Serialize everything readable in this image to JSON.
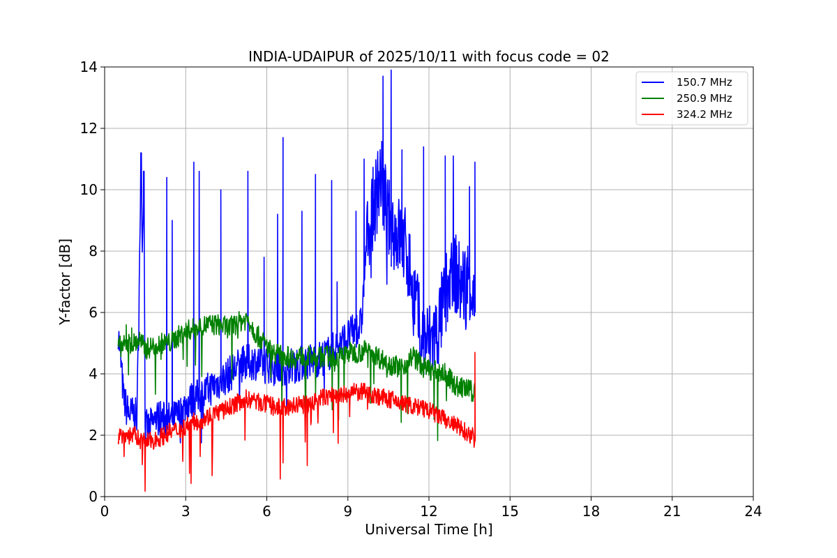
{
  "chart_data": {
    "type": "line",
    "title": "INDIA-UDAIPUR of 2025/10/11 with focus code = 02",
    "xlabel": "Universal Time [h]",
    "ylabel": "Y-factor [dB]",
    "xlim": [
      0,
      24
    ],
    "ylim": [
      0,
      14
    ],
    "xticks": [
      0,
      3,
      6,
      9,
      12,
      15,
      18,
      21,
      24
    ],
    "yticks": [
      0,
      2,
      4,
      6,
      8,
      10,
      12,
      14
    ],
    "grid": true,
    "legend_position": "top-right",
    "series": [
      {
        "name": "150.7 MHz",
        "color": "#0000ff",
        "x": [
          0.5,
          0.6,
          0.7,
          0.8,
          0.9,
          1.0,
          1.2,
          1.35,
          1.4,
          1.45,
          1.5,
          1.6,
          1.8,
          2.0,
          2.2,
          2.5,
          2.8,
          3.0,
          3.3,
          3.6,
          4.0,
          4.5,
          5.0,
          5.5,
          6.0,
          6.5,
          7.0,
          7.5,
          8.0,
          8.5,
          9.0,
          9.5,
          9.7,
          9.9,
          10.2,
          10.5,
          10.8,
          11.1,
          11.4,
          11.7,
          12.0,
          12.3,
          12.6,
          12.9,
          13.2,
          13.5,
          13.7
        ],
        "values": [
          5.4,
          4.4,
          3.2,
          2.9,
          2.7,
          2.7,
          2.6,
          11.2,
          8.0,
          10.6,
          2.3,
          2.2,
          2.4,
          2.6,
          2.5,
          2.5,
          2.7,
          3.0,
          3.2,
          3.3,
          3.6,
          3.9,
          4.3,
          4.4,
          4.3,
          4.2,
          4.3,
          4.4,
          4.5,
          4.8,
          5.2,
          5.6,
          8.5,
          9.2,
          10.5,
          9.0,
          8.6,
          8.2,
          7.0,
          5.2,
          5.0,
          5.3,
          6.5,
          7.5,
          6.8,
          7.2,
          6.0
        ],
        "peaks": [
          [
            1.35,
            11.2
          ],
          [
            1.45,
            10.6
          ],
          [
            2.3,
            10.4
          ],
          [
            2.5,
            9.0
          ],
          [
            3.3,
            10.9
          ],
          [
            3.5,
            10.6
          ],
          [
            4.3,
            10.0
          ],
          [
            5.3,
            10.6
          ],
          [
            5.9,
            7.8
          ],
          [
            6.4,
            9.2
          ],
          [
            6.6,
            11.7
          ],
          [
            7.3,
            9.3
          ],
          [
            7.8,
            10.5
          ],
          [
            8.4,
            10.3
          ],
          [
            8.6,
            7.0
          ],
          [
            9.3,
            9.3
          ],
          [
            9.6,
            11.0
          ],
          [
            10.3,
            13.7
          ],
          [
            10.6,
            13.9
          ],
          [
            11.0,
            11.3
          ],
          [
            11.5,
            7.0
          ],
          [
            11.8,
            11.4
          ],
          [
            12.2,
            6.0
          ],
          [
            12.6,
            11.1
          ],
          [
            12.9,
            11.1
          ],
          [
            13.5,
            10.1
          ],
          [
            13.7,
            10.9
          ]
        ]
      },
      {
        "name": "250.9 MHz",
        "color": "#008000",
        "x": [
          0.5,
          0.7,
          0.9,
          1.1,
          1.3,
          1.5,
          1.8,
          2.1,
          2.4,
          2.7,
          3.0,
          3.4,
          3.8,
          4.2,
          4.6,
          5.0,
          5.3,
          5.6,
          5.9,
          6.2,
          6.6,
          7.0,
          7.4,
          7.8,
          8.2,
          8.6,
          9.0,
          9.4,
          9.8,
          10.2,
          10.6,
          11.0,
          11.4,
          11.8,
          12.2,
          12.6,
          13.0,
          13.4,
          13.7
        ],
        "values": [
          4.9,
          4.9,
          5.0,
          5.0,
          5.1,
          4.8,
          4.9,
          5.0,
          5.0,
          5.2,
          5.4,
          5.5,
          5.6,
          5.6,
          5.5,
          5.7,
          5.8,
          5.3,
          5.0,
          4.7,
          4.6,
          4.5,
          4.6,
          4.5,
          4.6,
          4.5,
          4.7,
          4.7,
          4.8,
          4.5,
          4.3,
          4.2,
          4.6,
          4.2,
          4.1,
          4.0,
          3.6,
          3.5,
          3.4
        ],
        "peaks": [
          [
            0.8,
            5.6
          ],
          [
            1.0,
            5.5
          ],
          [
            1.3,
            5.3
          ]
        ]
      },
      {
        "name": "324.2 MHz",
        "color": "#ff0000",
        "x": [
          0.5,
          0.8,
          1.1,
          1.4,
          1.7,
          2.0,
          2.4,
          2.8,
          3.2,
          3.6,
          4.0,
          4.4,
          4.8,
          5.2,
          5.6,
          6.0,
          6.4,
          6.8,
          7.2,
          7.6,
          8.0,
          8.4,
          8.8,
          9.2,
          9.6,
          10.0,
          10.4,
          10.8,
          11.2,
          11.6,
          12.0,
          12.4,
          12.8,
          13.2,
          13.6,
          13.7
        ],
        "values": [
          2.0,
          2.0,
          2.0,
          1.8,
          1.8,
          1.9,
          2.1,
          2.2,
          2.4,
          2.5,
          2.7,
          2.8,
          3.0,
          3.2,
          3.1,
          3.0,
          2.9,
          2.9,
          3.0,
          3.0,
          3.2,
          3.3,
          3.3,
          3.4,
          3.4,
          3.3,
          3.2,
          3.1,
          3.0,
          2.9,
          2.8,
          2.6,
          2.4,
          2.2,
          2.0,
          1.8
        ],
        "peaks": [
          [
            13.7,
            4.7
          ]
        ]
      }
    ]
  }
}
